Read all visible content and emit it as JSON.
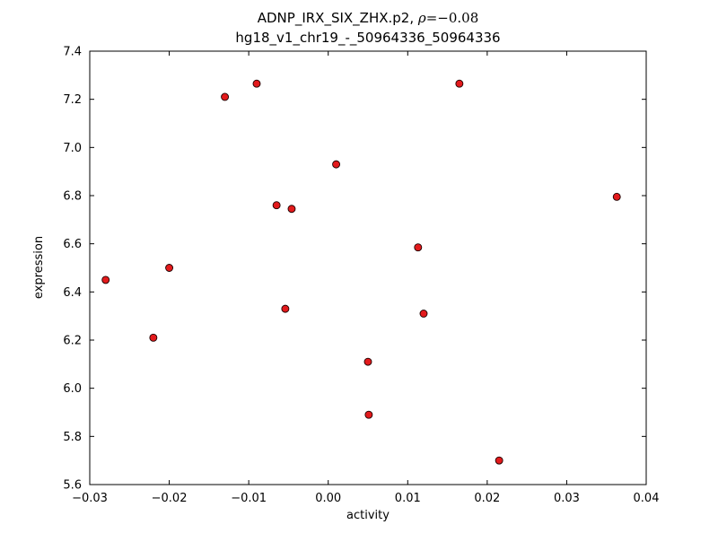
{
  "figure": {
    "background": "#ffffff"
  },
  "chart_data": {
    "type": "scatter",
    "title_prefix": "ADNP_IRX_SIX_ZHX.p2, ",
    "title_rho": "ρ",
    "title_rest": "=−0.08",
    "subtitle": "hg18_v1_chr19_-_50964336_50964336",
    "xlabel": "activity",
    "ylabel": "expression",
    "xlim": [
      -0.03,
      0.04
    ],
    "ylim": [
      5.6,
      7.4
    ],
    "xticks": [
      -0.03,
      -0.02,
      -0.01,
      0.0,
      0.01,
      0.02,
      0.03,
      0.04
    ],
    "xtick_labels": [
      "−0.03",
      "−0.02",
      "−0.01",
      "0.00",
      "0.01",
      "0.02",
      "0.03",
      "0.04"
    ],
    "yticks": [
      5.6,
      5.8,
      6.0,
      6.2,
      6.4,
      6.6,
      6.8,
      7.0,
      7.2,
      7.4
    ],
    "ytick_labels": [
      "5.6",
      "5.8",
      "6.0",
      "6.2",
      "6.4",
      "6.6",
      "6.8",
      "7.0",
      "7.2",
      "7.4"
    ],
    "grid": false,
    "legend": null,
    "marker": {
      "shape": "circle",
      "color": "#e31a1c",
      "edge": "#1a0000",
      "size": 4
    },
    "x": [
      -0.028,
      -0.022,
      -0.02,
      -0.013,
      -0.009,
      -0.0065,
      -0.0046,
      -0.0054,
      0.001,
      0.005,
      0.0051,
      0.0113,
      0.012,
      0.0165,
      0.0215,
      0.0363
    ],
    "y": [
      6.45,
      6.21,
      6.5,
      7.21,
      7.265,
      6.76,
      6.745,
      6.33,
      6.93,
      6.11,
      5.89,
      6.585,
      6.31,
      7.265,
      5.7,
      6.795
    ]
  }
}
